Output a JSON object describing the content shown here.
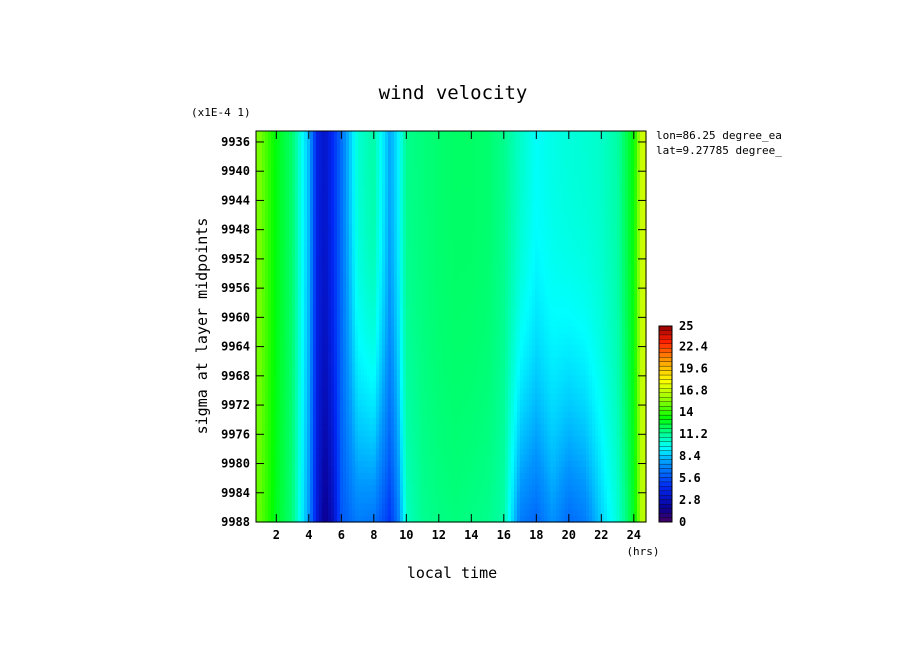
{
  "chart_data": {
    "type": "heatmap",
    "title": "wind velocity",
    "scale_note": "(x1E-4 1)",
    "xlabel": "local time",
    "x_unit": "(hrs)",
    "ylabel": "sigma at layer midpoints",
    "annotations": [
      "lon=86.25 degree_ea",
      "lat=9.27785 degree_"
    ],
    "x_range": [
      0.75,
      24.75
    ],
    "y_range": [
      9934.5,
      9988
    ],
    "y_inverted": true,
    "x_ticks": [
      2,
      4,
      6,
      8,
      10,
      12,
      14,
      16,
      18,
      20,
      22,
      24
    ],
    "x_tick_labels": [
      "2",
      "4",
      "6",
      "8",
      "10",
      "12",
      "14",
      "16",
      "18",
      "20",
      "22",
      "24"
    ],
    "y_ticks": [
      9936,
      9940,
      9944,
      9948,
      9952,
      9956,
      9960,
      9964,
      9968,
      9972,
      9976,
      9980,
      9984,
      9988
    ],
    "y_tick_labels": [
      "9936",
      "9940",
      "9944",
      "9948",
      "9952",
      "9956",
      "9960",
      "9964",
      "9968",
      "9972",
      "9976",
      "9980",
      "9984",
      "9988"
    ],
    "colorbar": {
      "min": 0,
      "max": 25,
      "tick_values": [
        0,
        2.8,
        5.6,
        8.4,
        11.2,
        14,
        16.8,
        19.6,
        22.4,
        25
      ],
      "tick_labels": [
        "0",
        "2.8",
        "5.6",
        "8.4",
        "11.2",
        "14",
        "16.8",
        "19.6",
        "22.4",
        "25"
      ]
    },
    "x_hours": [
      1,
      2,
      3,
      4,
      4.5,
      5,
      5.5,
      6,
      7,
      8,
      9,
      9.5,
      10,
      11,
      12,
      13,
      14,
      15,
      16,
      17,
      18,
      19,
      20,
      21,
      22,
      23,
      24,
      24.5
    ],
    "surface_profile": [
      14.8,
      12.8,
      11.6,
      7.5,
      3.6,
      1.5,
      3.0,
      5.8,
      6.8,
      6.6,
      4.8,
      6.8,
      10.5,
      11.3,
      11.5,
      11.6,
      11.5,
      11.4,
      11.0,
      6.8,
      6.2,
      7.4,
      6.3,
      6.8,
      8.6,
      10.2,
      12.8,
      16.5
    ],
    "top_profile": [
      15.2,
      13.0,
      11.8,
      8.2,
      4.0,
      3.2,
      4.6,
      6.4,
      10.2,
      11.0,
      7.8,
      9.2,
      11.4,
      11.6,
      11.8,
      11.9,
      11.9,
      11.8,
      11.4,
      10.4,
      9.6,
      9.9,
      10.1,
      10.2,
      10.4,
      11.0,
      13.2,
      17.0
    ]
  }
}
